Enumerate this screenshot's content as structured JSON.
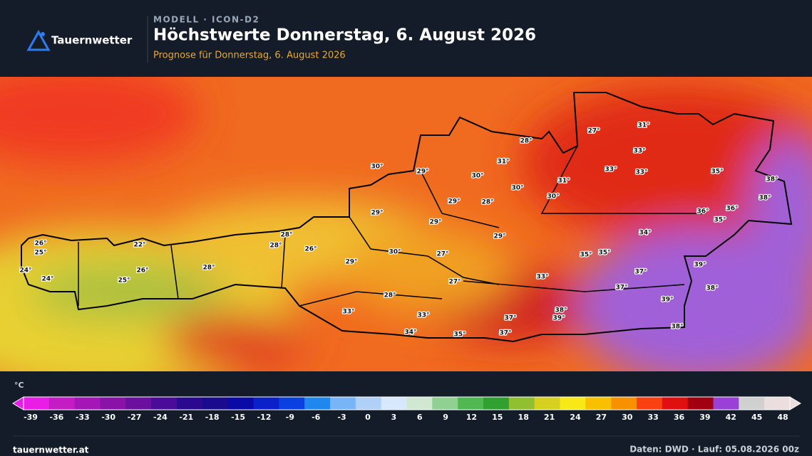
{
  "header": {
    "brand": "Tauernwetter",
    "model": "MODELL · ICON-D2",
    "title": "Höchstwerte Donnerstag, 6. August 2026",
    "subtitle": "Prognose für Donnerstag, 6. August 2026"
  },
  "map": {
    "labels": [
      "31°",
      "27°",
      "28°",
      "33°",
      "31°",
      "30°",
      "29°",
      "30°",
      "33°",
      "33°",
      "35°",
      "38°",
      "31°",
      "30°",
      "30°",
      "38°",
      "29°",
      "28°",
      "36°",
      "36°",
      "29°",
      "35°",
      "29°",
      "34°",
      "28°",
      "29°",
      "26°",
      "22°",
      "28°",
      "26°",
      "25°",
      "30°",
      "27°",
      "35°",
      "35°",
      "29°",
      "28°",
      "39°",
      "24°",
      "26°",
      "37°",
      "24°",
      "25°",
      "33°",
      "27°",
      "37°",
      "38°",
      "28°",
      "39°",
      "33°",
      "38°",
      "39°",
      "37°",
      "33°",
      "38°",
      "34°",
      "35°",
      "37°"
    ]
  },
  "legend": {
    "unit": "°C",
    "ticks": [
      -39,
      -36,
      -33,
      -30,
      -27,
      -24,
      -21,
      -18,
      -15,
      -12,
      -9,
      -6,
      -3,
      0,
      3,
      6,
      9,
      12,
      15,
      18,
      21,
      24,
      27,
      30,
      33,
      36,
      39,
      42,
      45,
      48
    ],
    "colors": [
      "#e81ee8",
      "#c51bc5",
      "#a615b8",
      "#8a12a8",
      "#6a0fa0",
      "#4a0a9a",
      "#2a0890",
      "#1a0a90",
      "#0a0aa8",
      "#0a20c8",
      "#0a40e0",
      "#1e88f0",
      "#78b4f8",
      "#b0d0f8",
      "#d8e8fc",
      "#d0e8d0",
      "#90d090",
      "#50b850",
      "#30a030",
      "#90c030",
      "#d8d020",
      "#f8e818",
      "#f8c000",
      "#f89000",
      "#f84010",
      "#e01010",
      "#a00010",
      "#9a40d8",
      "#d0d0d0",
      "#ecdede"
    ]
  },
  "footer": {
    "site": "tauernwetter.at",
    "source": "Daten: DWD · Lauf: 05.08.2026 00z"
  }
}
